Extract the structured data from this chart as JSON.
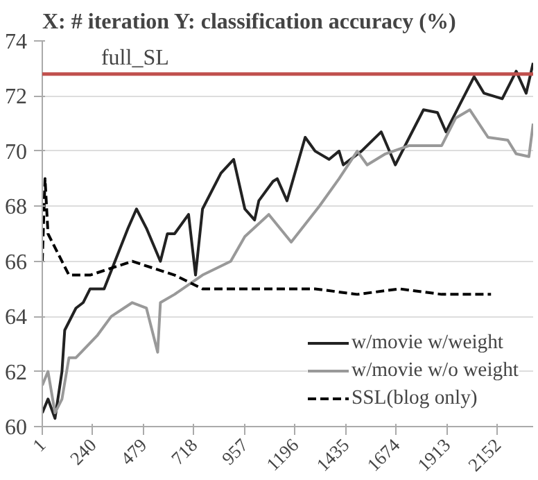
{
  "chart_data": {
    "type": "line",
    "title": "X: # iteration Y: classification accuracy (%)",
    "xlim": [
      1,
      2320
    ],
    "ylim": [
      60,
      74
    ],
    "xticks": [
      1,
      240,
      479,
      718,
      957,
      1196,
      1435,
      1674,
      1913,
      2152
    ],
    "yticks": [
      60,
      62,
      64,
      66,
      68,
      70,
      72,
      74
    ],
    "grid": "y",
    "legend": "bottom right",
    "line_style": "solid",
    "ref_lines": [
      {
        "axis": "y",
        "value": 72.8,
        "label": "full_SL",
        "color": "#c0504d"
      }
    ],
    "series": [
      {
        "name": "w/movie w/weight",
        "color": "#222222",
        "x": [
          1,
          28,
          61,
          94,
          107,
          160,
          194,
          227,
          293,
          406,
          446,
          493,
          559,
          592,
          626,
          692,
          725,
          758,
          845,
          905,
          958,
          1004,
          1024,
          1091,
          1111,
          1157,
          1243,
          1290,
          1356,
          1403,
          1423,
          1509,
          1602,
          1669,
          1735,
          1802,
          1868,
          1908,
          1974,
          2041,
          2088,
          2174,
          2240,
          2287,
          2320
        ],
        "values": [
          60.5,
          61,
          60.3,
          62,
          63.5,
          64.3,
          64.5,
          65,
          65,
          67.2,
          67.9,
          67.2,
          66,
          67,
          67,
          67.7,
          65.5,
          67.9,
          69.2,
          69.7,
          67.9,
          67.5,
          68.2,
          68.9,
          69,
          68.2,
          70.5,
          70,
          69.7,
          70,
          69.5,
          70,
          70.7,
          69.5,
          70.5,
          71.5,
          71.4,
          70.7,
          71.7,
          72.7,
          72.1,
          71.9,
          72.9,
          72.1,
          73.2
        ]
      },
      {
        "name": "w/movie w/o weight",
        "color": "#999999",
        "x": [
          1,
          28,
          61,
          94,
          127,
          160,
          260,
          327,
          426,
          493,
          546,
          559,
          626,
          758,
          891,
          958,
          1071,
          1177,
          1310,
          1403,
          1489,
          1536,
          1622,
          1735,
          1888,
          1954,
          2021,
          2107,
          2200,
          2240,
          2300,
          2320
        ],
        "values": [
          61.5,
          62,
          60.5,
          61,
          62.5,
          62.5,
          63.3,
          64,
          64.5,
          64.3,
          62.7,
          64.5,
          64.8,
          65.5,
          66,
          66.9,
          67.7,
          66.7,
          68,
          69,
          70,
          69.5,
          69.9,
          70.2,
          70.2,
          71.2,
          71.5,
          70.5,
          70.4,
          69.9,
          69.8,
          71
        ]
      },
      {
        "name": "SSL(blog only)",
        "color": "#000000",
        "line_style": "dashed",
        "x": [
          1,
          14,
          28,
          61,
          127,
          227,
          426,
          626,
          758,
          891,
          1091,
          1290,
          1489,
          1689,
          1888,
          2054,
          2121
        ],
        "values": [
          66,
          69,
          67,
          66.5,
          65.5,
          65.5,
          66,
          65.5,
          65,
          65,
          65,
          65,
          64.8,
          65,
          64.8,
          64.8,
          64.8
        ]
      }
    ]
  }
}
